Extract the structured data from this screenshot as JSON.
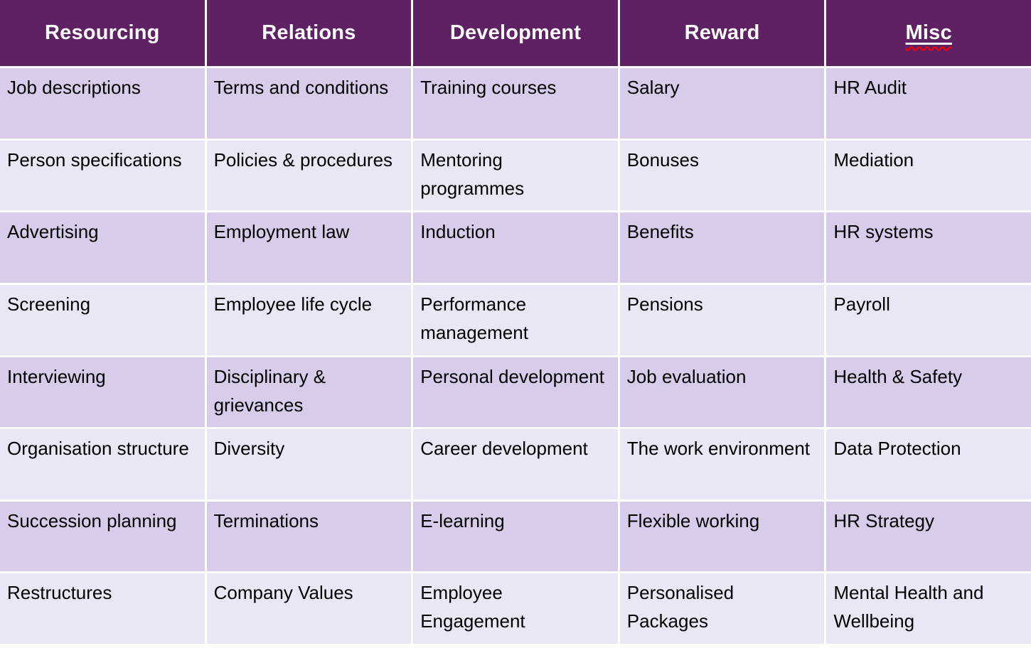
{
  "table": {
    "headers": [
      "Resourcing",
      "Relations",
      "Development",
      "Reward",
      "Misc"
    ],
    "rows": [
      [
        "Job descriptions",
        "Terms and conditions",
        "Training courses",
        "Salary",
        "HR Audit"
      ],
      [
        "Person specifications",
        "Policies & procedures",
        "Mentoring programmes",
        "Bonuses",
        "Mediation"
      ],
      [
        "Advertising",
        "Employment law",
        "Induction",
        "Benefits",
        "HR systems"
      ],
      [
        "Screening",
        "Employee life cycle",
        "Performance management",
        "Pensions",
        "Payroll"
      ],
      [
        "Interviewing",
        "Disciplinary & grievances",
        "Personal development",
        "Job evaluation",
        "Health & Safety"
      ],
      [
        "Organisation structure",
        "Diversity",
        "Career development",
        "The work environment",
        "Data Protection"
      ],
      [
        "Succession planning",
        "Terminations",
        "E-learning",
        "Flexible working",
        "HR Strategy"
      ],
      [
        "Restructures",
        "Company Values",
        "Employee Engagement",
        "Personalised Packages",
        "Mental Health and Wellbeing"
      ]
    ],
    "colors": {
      "header_bg": "#5e2164",
      "header_text": "#ffffff",
      "row_dark": "#d8ccea",
      "row_light": "#ece6f4",
      "body_text": "#000000",
      "divider": "#ffffff",
      "misc_underline": "#ffffff",
      "spellcheck_wavy": "#ff0000"
    }
  }
}
